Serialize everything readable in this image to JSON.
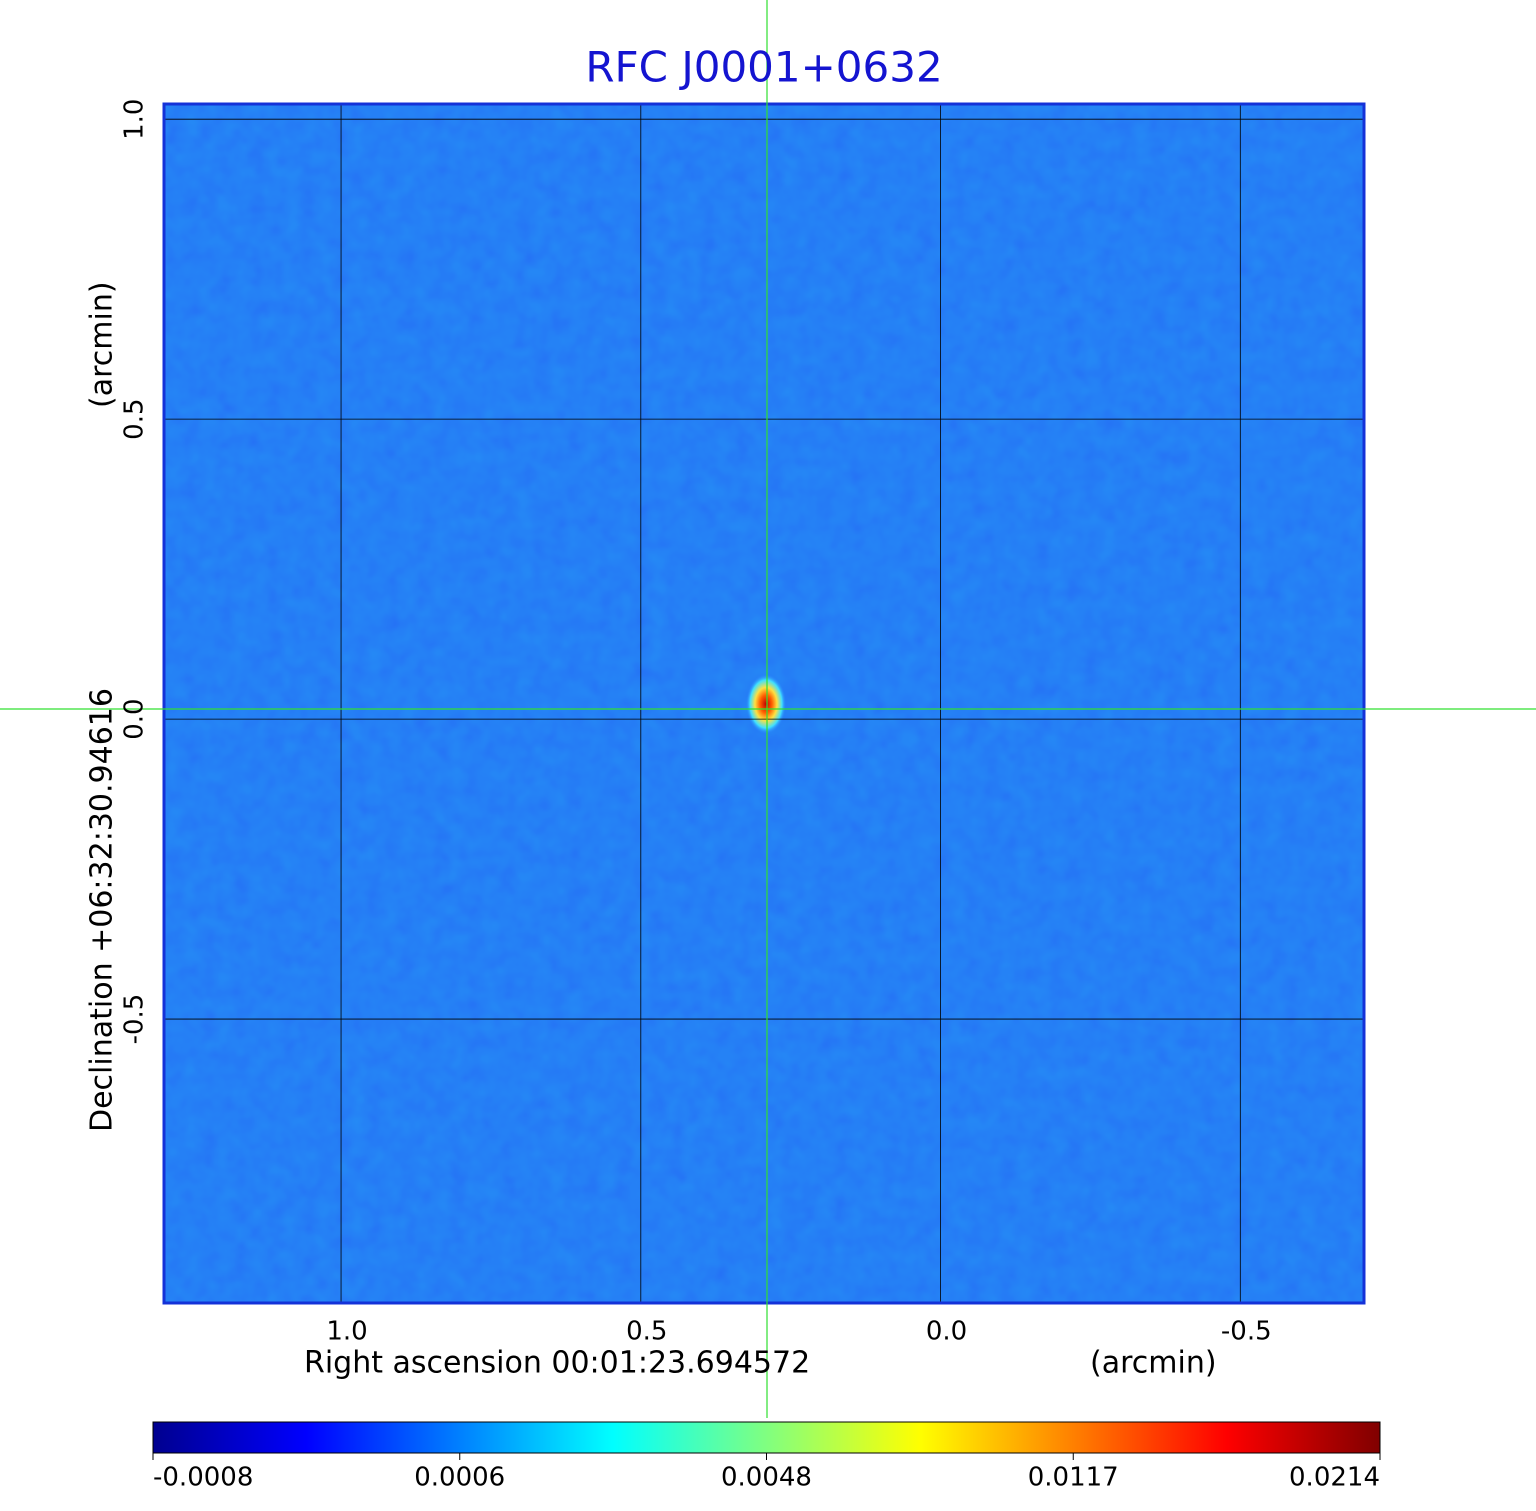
{
  "chart_data": {
    "type": "image",
    "title": "RFC J0001+0632",
    "x_label": "Right ascension  00:01:23.694572",
    "x_unit": "(arcmin)",
    "y_label": "Declination  +06:32:30.94616",
    "y_unit": "(arcmin)",
    "xlim": [
      1.297,
      -0.708
    ],
    "ylim": [
      -0.975,
      1.027
    ],
    "xticks": [
      {
        "value": 1,
        "label": "1.0"
      },
      0.5,
      {
        "value": 0,
        "label": "0.0"
      },
      -0.5
    ],
    "yticks": [
      {
        "value": 1,
        "label": "1.0"
      },
      0.5,
      {
        "value": 0,
        "label": "0.0"
      },
      -0.5
    ],
    "grid": true,
    "colormap": "jet",
    "colorbar_ticks": [
      -0.0008,
      0.0006,
      0.0048,
      0.0117,
      0.0214
    ]
  }
}
